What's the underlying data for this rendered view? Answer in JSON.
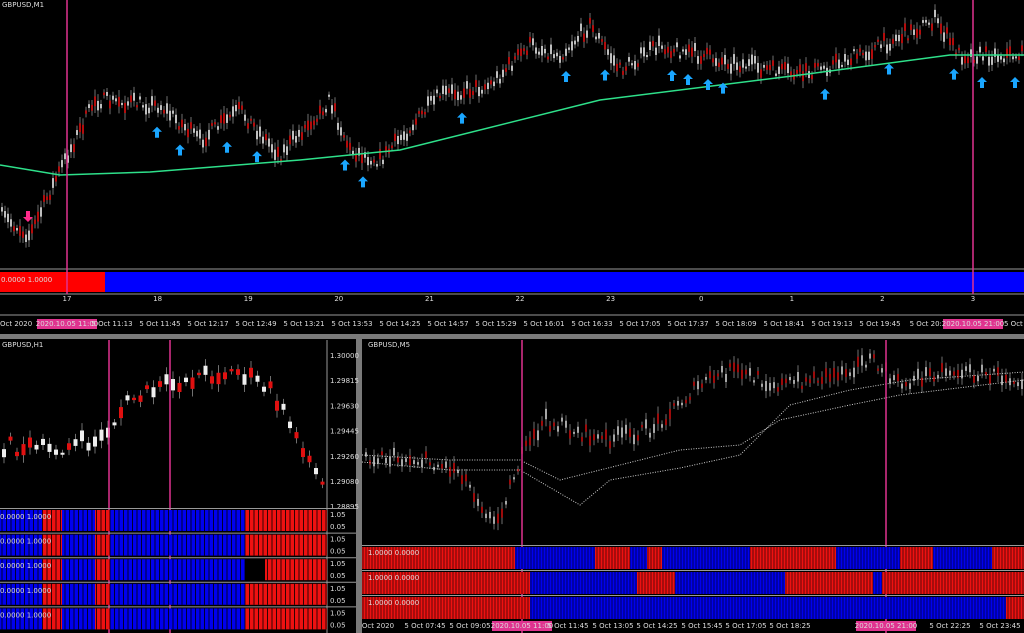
{
  "top": {
    "title": "GBPUSD,M1",
    "indicator_label": "0.0000 1.0000",
    "days": [
      "17",
      "18",
      "19",
      "20",
      "21",
      "22",
      "23",
      "0",
      "1",
      "2",
      "3"
    ],
    "times": [
      "Oct 2020",
      "2020.10.05 11:00",
      "5 Oct 11:13",
      "5 Oct 11:45",
      "5 Oct 12:17",
      "5 Oct 12:49",
      "5 Oct 13:21",
      "5 Oct 13:53",
      "5 Oct 14:25",
      "5 Oct 14:57",
      "5 Oct 15:29",
      "5 Oct 16:01",
      "5 Oct 16:33",
      "5 Oct 17:05",
      "5 Oct 17:37",
      "5 Oct 18:09",
      "5 Oct 18:41",
      "5 Oct 19:13",
      "5 Oct 19:45",
      "5 Oct 20:1",
      "2020.10.05 21:00",
      "5 Oct"
    ]
  },
  "left": {
    "title": "GBPUSD,H1",
    "prices": [
      "1.30000",
      "1.29815",
      "1.29630",
      "1.29445",
      "1.29260",
      "1.29080",
      "1.28895"
    ],
    "rows": [
      {
        "label": "0.0000 1.0000",
        "hi": "1.05",
        "lo": "0.05"
      },
      {
        "label": "0.0000 1.0000",
        "hi": "1.05",
        "lo": "0.05"
      },
      {
        "label": "0.0000 1.0000",
        "hi": "1.05",
        "lo": "0.05"
      },
      {
        "label": "0.0000 1.0000",
        "hi": "1.05",
        "lo": "0.05"
      },
      {
        "label": "0.0000 1.0000",
        "hi": "1.05",
        "lo": "0.05"
      }
    ]
  },
  "right": {
    "title": "GBPUSD,M5",
    "rows": [
      "1.0000 0.0000",
      "1.0000 0.0000",
      "1.0000 0.0000"
    ],
    "times": [
      "Oct 2020",
      "5 Oct 07:45",
      "5 Oct 09:05",
      "2020.10.05 11:00",
      "5 Oct 11:45",
      "5 Oct 13:05",
      "5 Oct 14:25",
      "5 Oct 15:45",
      "5 Oct 17:05",
      "5 Oct 18:25",
      "2020.10.05 21:00",
      "5 Oct 22:25",
      "5 Oct 23:45"
    ]
  }
}
